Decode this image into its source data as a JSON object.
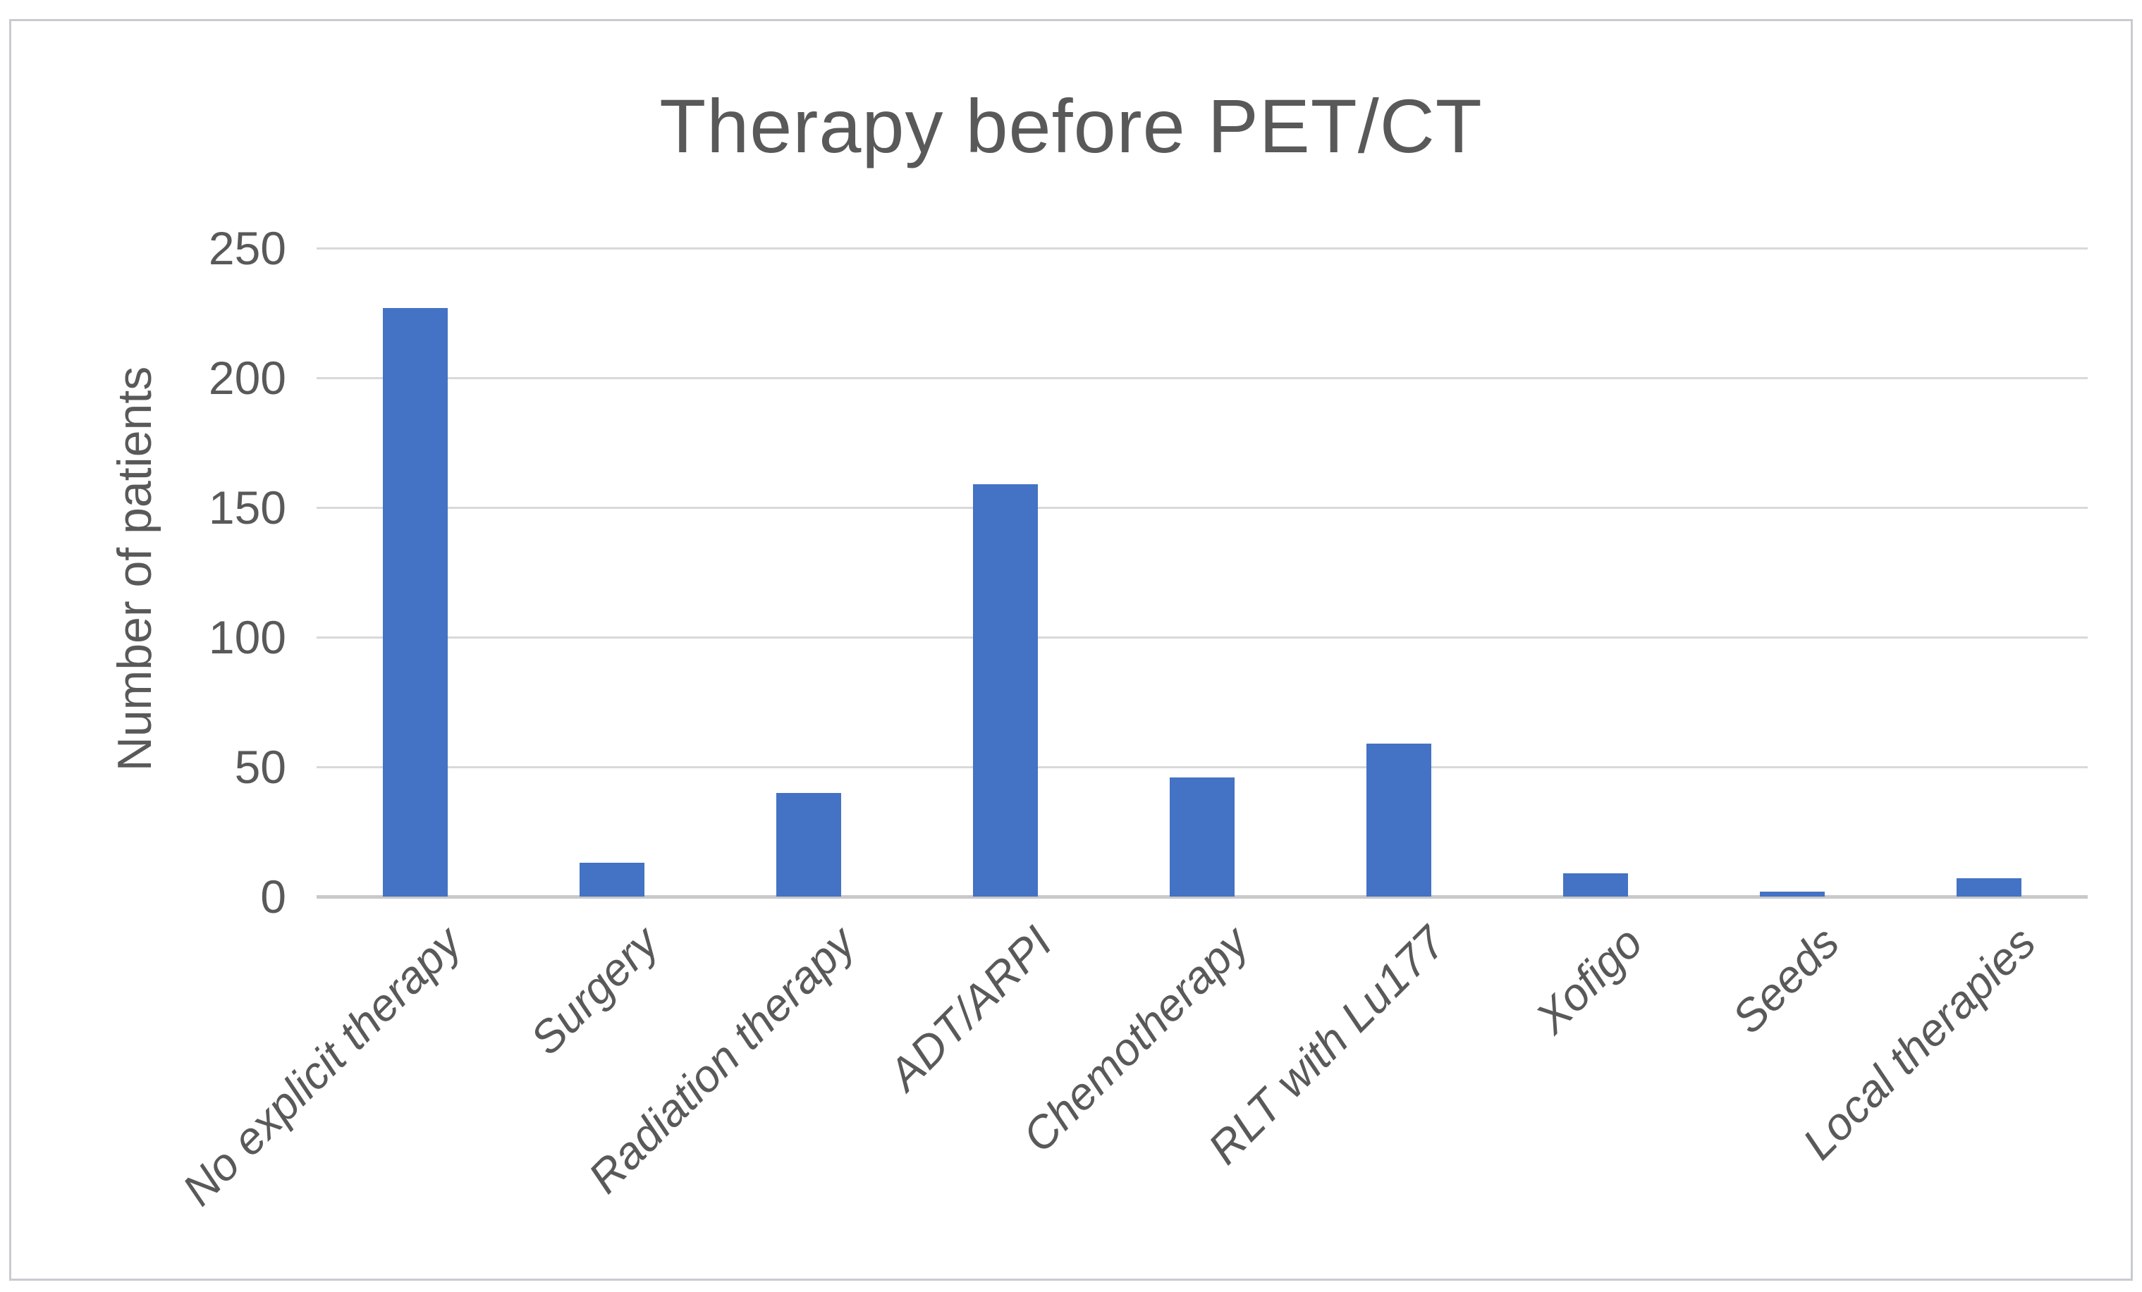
{
  "chart_data": {
    "type": "bar",
    "title": "Therapy before PET/CT",
    "xlabel": "",
    "ylabel": "Number of patients",
    "categories": [
      "No explicit therapy",
      "Surgery",
      "Radiation therapy",
      "ADT/ARPI",
      "Chemotherapy",
      "RLT with Lu177",
      "Xofigo",
      "Seeds",
      "Local therapies"
    ],
    "values": [
      227,
      13,
      40,
      159,
      46,
      59,
      9,
      2,
      7
    ],
    "ylim": [
      0,
      250
    ],
    "yticks": [
      0,
      50,
      100,
      150,
      200,
      250
    ],
    "grid": "horizontal-gridlines",
    "legend": "none",
    "bar_color": "#4472C4",
    "text_color": "#595959",
    "gridline_color": "#D9D9D9",
    "axis_line_color": "#C9C9C9"
  }
}
